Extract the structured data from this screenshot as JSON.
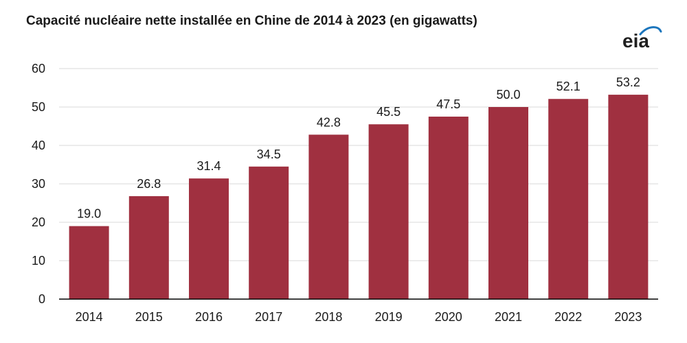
{
  "title": "Capacité nucléaire nette installée en Chine de 2014 à 2023 (en gigawatts)",
  "logo": {
    "text": "eia",
    "icon": "eia-logo-icon",
    "swoosh_color": "#1b75bc"
  },
  "colors": {
    "bar": "#a03040",
    "grid": "#d9d9d9",
    "axis": "#000000"
  },
  "chart_data": {
    "type": "bar",
    "title": "Capacité nucléaire nette installée en Chine de 2014 à 2023 (en gigawatts)",
    "xlabel": "",
    "ylabel": "",
    "categories": [
      "2014",
      "2015",
      "2016",
      "2017",
      "2018",
      "2019",
      "2020",
      "2021",
      "2022",
      "2023"
    ],
    "values": [
      19.0,
      26.8,
      31.4,
      34.5,
      42.8,
      45.5,
      47.5,
      50.0,
      52.1,
      53.2
    ],
    "data_labels": [
      "19.0",
      "26.8",
      "31.4",
      "34.5",
      "42.8",
      "45.5",
      "47.5",
      "50.0",
      "52.1",
      "53.2"
    ],
    "ylim": [
      0,
      60
    ],
    "yticks": [
      "0",
      "10",
      "20",
      "30",
      "40",
      "50",
      "60"
    ],
    "grid": true,
    "legend": "none"
  }
}
